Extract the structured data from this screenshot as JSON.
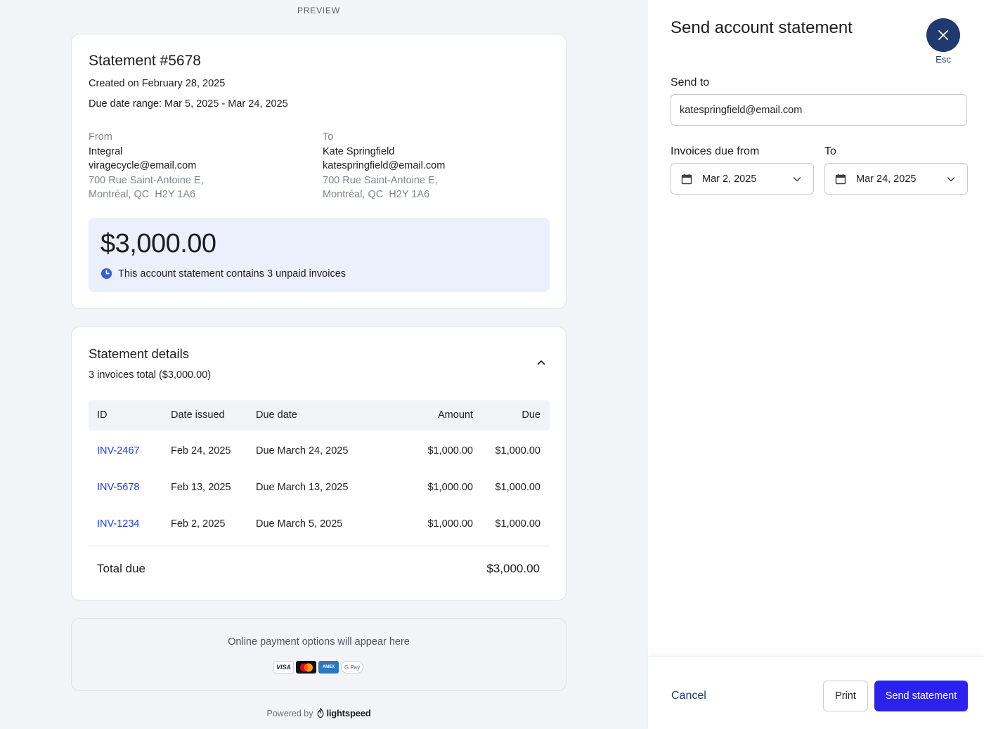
{
  "preview": {
    "label": "PREVIEW",
    "statement": {
      "title": "Statement #5678",
      "created": "Created on February 28, 2025",
      "due_range": "Due date range: Mar 5, 2025 - Mar 24, 2025",
      "from": {
        "heading": "From",
        "name": "Integral",
        "email": "viragecycle@email.com",
        "address_line1": "700 Rue Saint-Antoine E,",
        "address_line2": "Montréal, QC  H2Y 1A6"
      },
      "to": {
        "heading": "To",
        "name": "Kate Springfield",
        "email": "katespringfield@email.com",
        "address_line1": "700 Rue Saint-Antoine E,",
        "address_line2": "Montréal, QC  H2Y 1A6"
      },
      "amount": "$3,000.00",
      "amount_note": "This account statement contains 3 unpaid invoices"
    },
    "details": {
      "title": "Statement details",
      "subtitle": "3 invoices total ($3,000.00)",
      "columns": [
        "ID",
        "Date issued",
        "Due date",
        "Amount",
        "Due"
      ],
      "rows": [
        {
          "id": "INV-2467",
          "issued": "Feb 24, 2025",
          "due_date": "Due March 24, 2025",
          "amount": "$1,000.00",
          "due": "$1,000.00"
        },
        {
          "id": "INV-5678",
          "issued": "Feb 13, 2025",
          "due_date": "Due March 13, 2025",
          "amount": "$1,000.00",
          "due": "$1,000.00"
        },
        {
          "id": "INV-1234",
          "issued": "Feb 2, 2025",
          "due_date": "Due March 5, 2025",
          "amount": "$1,000.00",
          "due": "$1,000.00"
        }
      ],
      "total_label": "Total due",
      "total_value": "$3,000.00"
    },
    "payment": {
      "text": "Online payment options will appear here",
      "logos": [
        "VISA",
        "mastercard",
        "AMEX",
        "G Pay"
      ]
    },
    "powered_by": "Powered by",
    "brand": "lightspeed"
  },
  "panel": {
    "title": "Send account statement",
    "close_hint": "Esc",
    "send_to_label": "Send to",
    "send_to_value": "katespringfield@email.com",
    "from_label": "Invoices due from",
    "to_label": "To",
    "from_date": "Mar 2, 2025",
    "to_date": "Mar 24, 2025",
    "cancel": "Cancel",
    "print": "Print",
    "send": "Send statement"
  },
  "colors": {
    "accent": "#2b22f0",
    "navy": "#1e3a6e",
    "link": "#1f3fcf",
    "highlight_bg": "#ebf0fc"
  },
  "icons": [
    "clock-icon",
    "chevron-up-icon",
    "close-icon",
    "calendar-icon",
    "chevron-down-icon",
    "lightspeed-flame-icon"
  ]
}
